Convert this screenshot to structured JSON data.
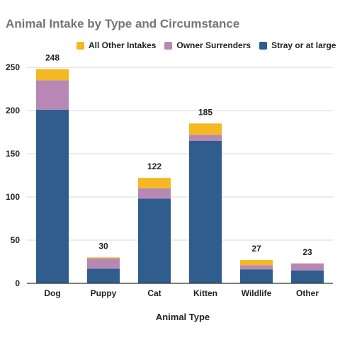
{
  "colors": {
    "stray": "#2e5d8e",
    "owner": "#b888b5",
    "other": "#f4b823",
    "title": "#757575",
    "grid": "#d9d9d9",
    "axis": "#333333",
    "text": "#222222"
  },
  "chart_data": {
    "type": "bar",
    "stacked": true,
    "title": "Animal Intake by Type and Circumstance",
    "xlabel": "Animal Type",
    "ylabel": "",
    "ylim": [
      0,
      250
    ],
    "yticks": [
      0,
      50,
      100,
      150,
      200,
      250
    ],
    "grid": true,
    "legend_position": "top",
    "categories": [
      "Dog",
      "Puppy",
      "Cat",
      "Kitten",
      "Wildlife",
      "Other"
    ],
    "series": [
      {
        "name": "Stray or at large",
        "color": "#2e5d8e",
        "values": [
          201,
          17,
          98,
          165,
          16,
          15
        ]
      },
      {
        "name": "Owner Surrenders",
        "color": "#b888b5",
        "values": [
          34,
          12,
          12,
          7,
          5,
          8
        ]
      },
      {
        "name": "All Other Intakes",
        "color": "#f4b823",
        "values": [
          13,
          1,
          12,
          13,
          6,
          0
        ]
      }
    ],
    "legend_order": [
      "All Other Intakes",
      "Owner Surrenders",
      "Stray or at large"
    ],
    "totals": [
      "248",
      "30",
      "122",
      "185",
      "27",
      "23"
    ]
  }
}
